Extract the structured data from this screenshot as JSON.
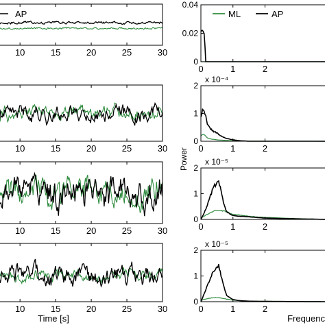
{
  "figure": {
    "time_xlabel": "Time [s]",
    "freq_xlabel_visible": "Frequenc",
    "power_ylabel": "Power"
  },
  "colors": {
    "ML": "#2e8b3e",
    "AP": "#000000"
  },
  "chart_data": [
    {
      "type": "line",
      "panel": "time-1",
      "xlabel": "",
      "ylabel": "",
      "xlim": [
        7,
        30
      ],
      "xticks": [
        10,
        15,
        20,
        25,
        30
      ],
      "legend": {
        "placement": "top-left",
        "entries": [
          "AP"
        ]
      },
      "series": [
        {
          "name": "AP",
          "description": "nearly flat trace",
          "level": 0.55,
          "amplitude": 0.04
        },
        {
          "name": "ML",
          "description": "nearly flat trace",
          "level": 0.41,
          "amplitude": 0.03
        }
      ]
    },
    {
      "type": "line",
      "panel": "time-2",
      "xlim": [
        7,
        30
      ],
      "xticks": [
        10,
        15,
        20,
        25,
        30
      ],
      "series": [
        {
          "name": "AP",
          "level": 0.5,
          "amplitude": 0.22
        },
        {
          "name": "ML",
          "level": 0.5,
          "amplitude": 0.18
        }
      ]
    },
    {
      "type": "line",
      "panel": "time-3",
      "xlim": [
        7,
        30
      ],
      "xticks": [
        10,
        15,
        20,
        25,
        30
      ],
      "series": [
        {
          "name": "AP",
          "level": 0.5,
          "amplitude": 0.38
        },
        {
          "name": "ML",
          "level": 0.5,
          "amplitude": 0.32
        }
      ]
    },
    {
      "type": "line",
      "panel": "time-4",
      "xlabel": "Time [s]",
      "xlim": [
        7,
        30
      ],
      "xticks": [
        10,
        15,
        20,
        25,
        30
      ],
      "series": [
        {
          "name": "AP",
          "level": 0.45,
          "amplitude": 0.28
        },
        {
          "name": "ML",
          "level": 0.45,
          "amplitude": 0.14
        }
      ]
    },
    {
      "type": "line",
      "panel": "psd-1",
      "xlim": [
        0,
        4
      ],
      "xticks": [
        0,
        1,
        2
      ],
      "ylim": [
        0,
        0.04
      ],
      "yticks": [
        "0",
        "0.02",
        "0.04"
      ],
      "legend": {
        "placement": "top",
        "entries": [
          "ML",
          "AP"
        ]
      },
      "series": [
        {
          "name": "AP",
          "x": [
            0,
            0.02,
            0.05,
            0.08,
            0.1,
            0.13,
            0.15,
            0.18,
            0.25,
            4
          ],
          "y": [
            0.021,
            0.022,
            0.022,
            0.021,
            0.02,
            0.01,
            0.0,
            0.0,
            0.0,
            0.0
          ]
        },
        {
          "name": "ML",
          "x": [
            0,
            4
          ],
          "y": [
            0,
            0
          ]
        }
      ]
    },
    {
      "type": "line",
      "panel": "psd-2",
      "xlim": [
        0,
        4
      ],
      "xticks": [
        0,
        1,
        2
      ],
      "ylim": [
        0,
        2
      ],
      "yticks": [
        "0",
        "1",
        "2"
      ],
      "scale_label": "x 10⁻⁴",
      "series": [
        {
          "name": "AP",
          "x": [
            0,
            0.05,
            0.1,
            0.15,
            0.2,
            0.3,
            0.4,
            0.5,
            0.6,
            0.8,
            1.0,
            1.2,
            1.5,
            4
          ],
          "y": [
            0.9,
            1.1,
            1.15,
            0.9,
            0.6,
            0.45,
            0.35,
            0.3,
            0.2,
            0.1,
            0.05,
            0.02,
            0.0,
            0.0
          ]
        },
        {
          "name": "ML",
          "x": [
            0,
            0.1,
            0.2,
            0.3,
            0.5,
            0.8,
            1.0,
            4
          ],
          "y": [
            0.2,
            0.25,
            0.12,
            0.08,
            0.05,
            0.03,
            0.01,
            0.0
          ]
        }
      ]
    },
    {
      "type": "line",
      "panel": "psd-3",
      "xlim": [
        0,
        4
      ],
      "xticks": [
        0,
        1,
        2
      ],
      "ylim": [
        0,
        2
      ],
      "yticks": [
        "0",
        "1",
        "2"
      ],
      "scale_label": "x 10⁻⁵",
      "series": [
        {
          "name": "AP",
          "x": [
            0,
            0.1,
            0.2,
            0.3,
            0.4,
            0.5,
            0.55,
            0.6,
            0.7,
            0.8,
            1.0,
            1.2,
            1.5,
            2.0,
            3.0,
            4
          ],
          "y": [
            0.0,
            0.25,
            0.55,
            0.95,
            1.25,
            1.45,
            1.5,
            1.3,
            0.7,
            0.3,
            0.15,
            0.12,
            0.1,
            0.05,
            0.02,
            0.0
          ]
        },
        {
          "name": "ML",
          "x": [
            0,
            0.2,
            0.4,
            0.6,
            0.8,
            1.0,
            1.5,
            2.0,
            3.0,
            4
          ],
          "y": [
            0.05,
            0.2,
            0.32,
            0.35,
            0.3,
            0.2,
            0.12,
            0.08,
            0.03,
            0.0
          ]
        }
      ]
    },
    {
      "type": "line",
      "panel": "psd-4",
      "xlim": [
        0,
        4
      ],
      "xticks": [
        0,
        1,
        2
      ],
      "ylim": [
        0,
        2
      ],
      "yticks": [
        "0",
        "1",
        "2"
      ],
      "scale_label": "x 10⁻⁵",
      "series": [
        {
          "name": "AP",
          "x": [
            0,
            0.1,
            0.2,
            0.3,
            0.4,
            0.5,
            0.55,
            0.6,
            0.7,
            0.8,
            1.0,
            1.2,
            1.5,
            2.0,
            4
          ],
          "y": [
            0.0,
            0.3,
            0.6,
            0.95,
            1.2,
            1.4,
            1.4,
            1.2,
            0.65,
            0.25,
            0.08,
            0.04,
            0.02,
            0.01,
            0.0
          ]
        },
        {
          "name": "ML",
          "x": [
            0,
            0.2,
            0.4,
            0.6,
            0.8,
            1.0,
            1.5,
            4
          ],
          "y": [
            0.05,
            0.12,
            0.16,
            0.15,
            0.1,
            0.06,
            0.02,
            0.0
          ]
        }
      ]
    }
  ]
}
